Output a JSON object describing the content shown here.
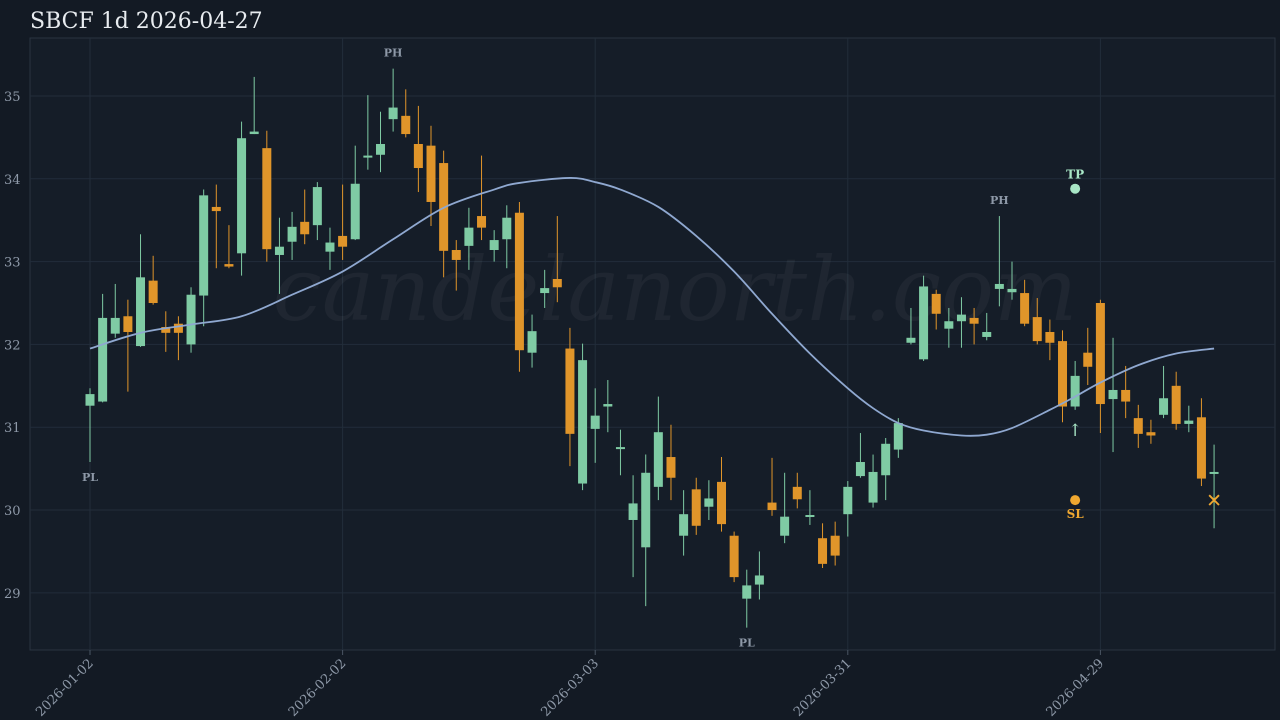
{
  "chart_data": {
    "type": "candlestick",
    "title": "SBCF 1d 2026-04-27",
    "watermark": "candelanorth.com",
    "categories": [
      "2026-01-02",
      "2026-01-05",
      "2026-01-06",
      "2026-01-07",
      "2026-01-08",
      "2026-01-09",
      "2026-01-12",
      "2026-01-13",
      "2026-01-14",
      "2026-01-15",
      "2026-01-16",
      "2026-01-20",
      "2026-01-21",
      "2026-01-22",
      "2026-01-23",
      "2026-01-26",
      "2026-01-27",
      "2026-01-28",
      "2026-01-29",
      "2026-01-30",
      "2026-02-02",
      "2026-02-03",
      "2026-02-04",
      "2026-02-05",
      "2026-02-06",
      "2026-02-09",
      "2026-02-10",
      "2026-02-11",
      "2026-02-12",
      "2026-02-13",
      "2026-02-17",
      "2026-02-18",
      "2026-02-19",
      "2026-02-20",
      "2026-02-23",
      "2026-02-24",
      "2026-02-25",
      "2026-02-26",
      "2026-02-27",
      "2026-03-02",
      "2026-03-03",
      "2026-03-04",
      "2026-03-05",
      "2026-03-06",
      "2026-03-09",
      "2026-03-10",
      "2026-03-11",
      "2026-03-12",
      "2026-03-13",
      "2026-03-16",
      "2026-03-17",
      "2026-03-18",
      "2026-03-19",
      "2026-03-20",
      "2026-03-23",
      "2026-03-24",
      "2026-03-25",
      "2026-03-26",
      "2026-03-27",
      "2026-03-30",
      "2026-03-31",
      "2026-04-01",
      "2026-04-02",
      "2026-04-06",
      "2026-04-07",
      "2026-04-08",
      "2026-04-09",
      "2026-04-10",
      "2026-04-13",
      "2026-04-14",
      "2026-04-15",
      "2026-04-16",
      "2026-04-17",
      "2026-04-20",
      "2026-04-21",
      "2026-04-22",
      "2026-04-23",
      "2026-04-24",
      "2026-04-27",
      "2026-04-28",
      "2026-04-29",
      "2026-04-30",
      "2026-05-01",
      "2026-05-04",
      "2026-05-05",
      "2026-05-06",
      "2026-05-07",
      "2026-05-08",
      "2026-05-11",
      "2026-05-12"
    ],
    "open": [
      31.26,
      31.31,
      32.13,
      32.34,
      31.98,
      32.77,
      32.21,
      32.25,
      32.0,
      32.59,
      33.66,
      32.97,
      33.1,
      34.54,
      34.37,
      33.08,
      33.24,
      33.48,
      33.44,
      33.12,
      33.31,
      33.27,
      34.26,
      34.29,
      34.72,
      34.76,
      34.42,
      34.4,
      34.19,
      33.14,
      33.19,
      33.55,
      33.14,
      33.27,
      33.59,
      31.9,
      32.62,
      32.79,
      31.95,
      30.32,
      30.98,
      31.25,
      30.74,
      29.88,
      29.55,
      30.28,
      30.64,
      29.69,
      30.25,
      30.04,
      30.34,
      29.69,
      28.93,
      29.1,
      30.09,
      29.69,
      30.28,
      29.92,
      29.66,
      29.69,
      29.95,
      30.41,
      30.09,
      30.42,
      30.73,
      32.02,
      31.82,
      32.61,
      32.19,
      32.28,
      32.32,
      32.09,
      32.67,
      32.63,
      32.62,
      32.33,
      32.15,
      32.04,
      31.25,
      31.9,
      32.5,
      31.34,
      31.45,
      31.11,
      30.94,
      31.15,
      31.5,
      31.04,
      31.12,
      30.45
    ],
    "high": [
      31.47,
      32.61,
      32.73,
      32.54,
      33.33,
      33.07,
      32.4,
      32.34,
      32.69,
      33.87,
      33.93,
      33.44,
      34.69,
      35.23,
      34.58,
      33.53,
      33.6,
      33.87,
      33.96,
      33.41,
      33.93,
      34.4,
      35.01,
      34.81,
      35.33,
      35.08,
      34.88,
      34.64,
      34.34,
      33.26,
      33.65,
      34.28,
      33.38,
      33.68,
      33.72,
      32.36,
      32.9,
      33.55,
      32.2,
      32.01,
      31.47,
      31.57,
      30.97,
      30.42,
      30.67,
      31.37,
      31.03,
      30.24,
      30.39,
      30.36,
      30.64,
      29.74,
      29.28,
      29.5,
      30.63,
      30.45,
      30.45,
      30.24,
      29.84,
      29.86,
      30.35,
      30.93,
      30.67,
      30.87,
      31.11,
      32.44,
      32.83,
      32.66,
      32.44,
      32.57,
      32.44,
      32.38,
      33.55,
      33.0,
      32.78,
      32.56,
      32.3,
      32.17,
      31.8,
      32.2,
      32.54,
      32.08,
      31.74,
      31.27,
      31.09,
      31.74,
      31.67,
      31.26,
      31.35,
      30.79
    ],
    "low": [
      30.58,
      31.3,
      32.08,
      31.43,
      31.97,
      32.48,
      31.91,
      31.81,
      31.9,
      32.22,
      32.92,
      32.92,
      32.83,
      34.54,
      33.0,
      32.61,
      33.02,
      33.21,
      33.26,
      32.9,
      33.02,
      33.26,
      34.11,
      34.08,
      34.57,
      34.5,
      33.84,
      33.43,
      32.81,
      32.65,
      32.9,
      33.26,
      33.0,
      32.92,
      31.67,
      31.72,
      32.44,
      32.51,
      30.53,
      30.24,
      30.57,
      30.94,
      30.42,
      29.19,
      28.84,
      30.12,
      30.12,
      29.45,
      29.7,
      29.88,
      29.74,
      29.13,
      28.58,
      28.92,
      29.93,
      29.6,
      30.02,
      29.82,
      29.3,
      29.33,
      29.68,
      30.39,
      30.03,
      30.12,
      30.63,
      32.0,
      31.8,
      32.18,
      31.96,
      31.96,
      32.0,
      32.05,
      32.46,
      32.54,
      32.22,
      32.0,
      31.81,
      31.06,
      31.21,
      31.51,
      30.93,
      30.7,
      31.11,
      30.75,
      30.8,
      31.11,
      30.97,
      30.94,
      30.29,
      29.78
    ],
    "close": [
      31.4,
      32.32,
      32.32,
      32.15,
      32.81,
      32.5,
      32.14,
      32.14,
      32.6,
      33.8,
      33.61,
      32.94,
      34.49,
      34.57,
      33.15,
      33.18,
      33.42,
      33.33,
      33.9,
      33.23,
      33.18,
      33.94,
      34.28,
      34.42,
      34.86,
      34.54,
      34.13,
      33.72,
      33.13,
      33.02,
      33.41,
      33.41,
      33.26,
      33.53,
      31.93,
      32.16,
      32.68,
      32.69,
      30.92,
      31.81,
      31.14,
      31.28,
      30.76,
      30.08,
      30.45,
      30.94,
      30.39,
      29.95,
      29.81,
      30.14,
      29.83,
      29.19,
      29.09,
      29.21,
      30.0,
      29.92,
      30.13,
      29.94,
      29.35,
      29.45,
      30.28,
      30.58,
      30.46,
      30.8,
      31.05,
      32.08,
      32.7,
      32.37,
      32.28,
      32.36,
      32.25,
      32.15,
      32.73,
      32.67,
      32.25,
      32.04,
      32.02,
      31.25,
      31.62,
      31.73,
      31.28,
      31.45,
      31.31,
      30.92,
      30.9,
      31.35,
      31.04,
      31.08,
      30.38,
      30.46
    ],
    "up_color": "#7fcba4",
    "down_color": "#e0952a",
    "ma": {
      "color": "#8fa8d0",
      "x": [
        "2026-01-02",
        "2026-01-08",
        "2026-01-14",
        "2026-01-21",
        "2026-01-27",
        "2026-02-02",
        "2026-02-06",
        "2026-02-12",
        "2026-02-19",
        "2026-02-23",
        "2026-02-27",
        "2026-03-03",
        "2026-03-05",
        "2026-03-10",
        "2026-03-13",
        "2026-03-18",
        "2026-03-23",
        "2026-03-26",
        "2026-03-31",
        "2026-04-02",
        "2026-04-07",
        "2026-04-09",
        "2026-04-14",
        "2026-04-16",
        "2026-04-20",
        "2026-04-23",
        "2026-04-27",
        "2026-04-29",
        "2026-05-04",
        "2026-05-07",
        "2026-05-12"
      ],
      "values": [
        31.95,
        32.14,
        32.24,
        32.34,
        32.6,
        32.88,
        33.27,
        33.65,
        33.87,
        33.95,
        34.01,
        33.96,
        33.87,
        33.66,
        33.31,
        32.88,
        32.37,
        31.89,
        31.47,
        31.23,
        31.05,
        30.96,
        30.9,
        30.91,
        30.99,
        31.21,
        31.37,
        31.54,
        31.75,
        31.89,
        31.95
      ]
    },
    "pivots": [
      {
        "label": "PL",
        "date": "2026-01-02",
        "kind": "low"
      },
      {
        "label": "PH",
        "date": "2026-02-06",
        "kind": "high"
      },
      {
        "label": "PL",
        "date": "2026-03-19",
        "kind": "low"
      },
      {
        "label": "PH",
        "date": "2026-04-17",
        "kind": "high"
      }
    ],
    "levels": [
      {
        "label": "TP",
        "date": "2026-04-27",
        "value": 33.88,
        "color": "#a8e6c6",
        "side": "above"
      },
      {
        "label": "SL",
        "date": "2026-04-27",
        "value": 30.12,
        "color": "#f0a830",
        "side": "below"
      }
    ],
    "signals": [
      {
        "text": "↑",
        "date": "2026-04-27",
        "color": "#a8e6c6"
      }
    ],
    "exits": [
      {
        "text": "✕",
        "date": "2026-05-12",
        "value": 30.12,
        "color": "#f0a830"
      }
    ],
    "ylim": [
      28.31,
      35.7
    ],
    "yticks": [
      29,
      30,
      31,
      32,
      33,
      34,
      35
    ],
    "xticks": [
      "2026-01-02",
      "2026-02-02",
      "2026-03-03",
      "2026-03-31",
      "2026-04-29"
    ],
    "grid": true
  }
}
